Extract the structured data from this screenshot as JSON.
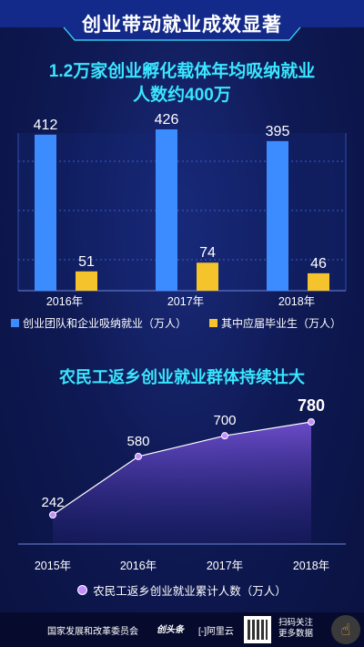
{
  "header": {
    "title": "创业带动就业成效显著"
  },
  "section1": {
    "title_line1": "1.2万家创业孵化载体年均吸纳就业",
    "title_line2": "人数约400万"
  },
  "section2": {
    "title": "农民工返乡创业就业群体持续壮大"
  },
  "footer": {
    "org": "国家发展和改革委员会",
    "logo1": "创头条",
    "logo2": "[-]阿里云",
    "scan_line1": "扫码关注",
    "scan_line2": "更多数据"
  },
  "chart_data": [
    {
      "type": "bar",
      "categories": [
        "2016年",
        "2017年",
        "2018年"
      ],
      "series": [
        {
          "name": "创业团队和企业吸纳就业（万人）",
          "values": [
            412,
            426,
            395
          ],
          "color": "#3d8cff"
        },
        {
          "name": "其中应届毕业生（万人）",
          "values": [
            51,
            74,
            46
          ],
          "color": "#f5c32c"
        }
      ],
      "ylim": [
        0,
        450
      ],
      "grid": true,
      "legend": "bottom"
    },
    {
      "type": "area",
      "x": [
        "2015年",
        "2016年",
        "2017年",
        "2018年"
      ],
      "series": [
        {
          "name": "农民工返乡创业就业累计人数（万人）",
          "values": [
            242,
            580,
            700,
            780
          ],
          "color": "#9a6cff"
        }
      ],
      "ylim": [
        0,
        800
      ],
      "legend": "bottom"
    }
  ]
}
